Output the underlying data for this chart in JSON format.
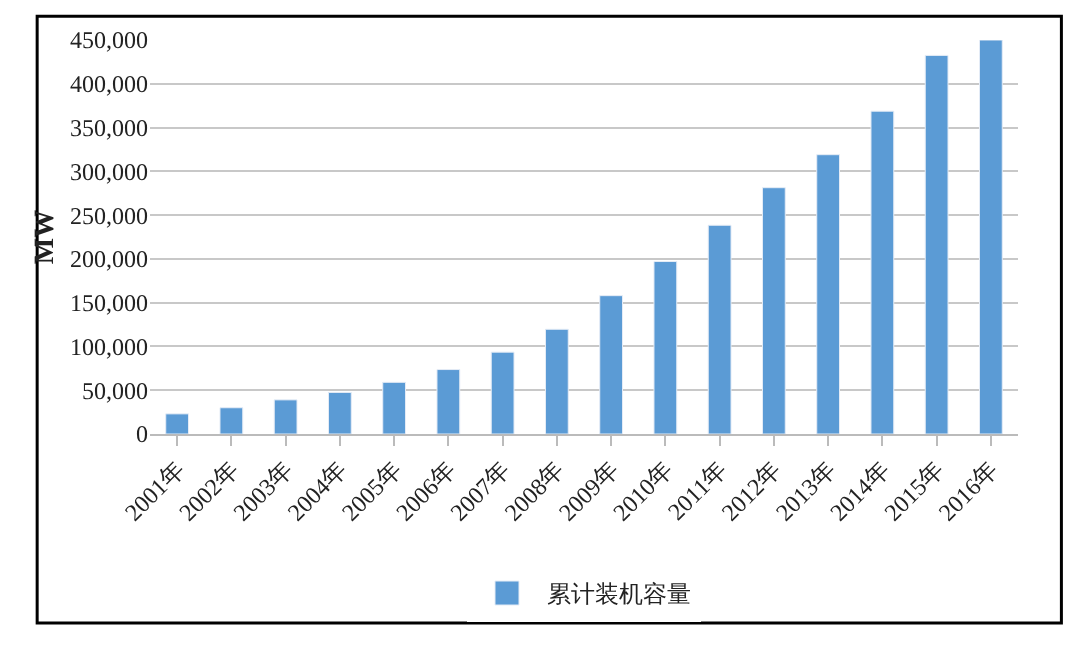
{
  "chart_data": {
    "type": "bar",
    "ylabel": "MW",
    "categories": [
      "2001年",
      "2002年",
      "2003年",
      "2004年",
      "2005年",
      "2006年",
      "2007年",
      "2008年",
      "2009年",
      "2010年",
      "2011年",
      "2012年",
      "2013年",
      "2014年",
      "2015年",
      "2016年"
    ],
    "series": [
      {
        "name": "累计装机容量",
        "color": "#5b9bd5",
        "values": [
          23000,
          30000,
          39000,
          47500,
          59000,
          73600,
          93500,
          119600,
          158000,
          197000,
          238400,
          281300,
          319000,
          368700,
          432400,
          450000
        ]
      }
    ],
    "ylim": [
      0,
      450000
    ],
    "yticks": [
      {
        "value": 0,
        "label": "0"
      },
      {
        "value": 50000,
        "label": "50,000"
      },
      {
        "value": 100000,
        "label": "100,000"
      },
      {
        "value": 150000,
        "label": "150,000"
      },
      {
        "value": 200000,
        "label": "200,000"
      },
      {
        "value": 250000,
        "label": "250,000"
      },
      {
        "value": 300000,
        "label": "300,000"
      },
      {
        "value": 350000,
        "label": "350,000"
      },
      {
        "value": 400000,
        "label": "400,000"
      },
      {
        "value": 450000,
        "label": "450,000"
      }
    ],
    "grid": "y",
    "legend": "bottom"
  }
}
